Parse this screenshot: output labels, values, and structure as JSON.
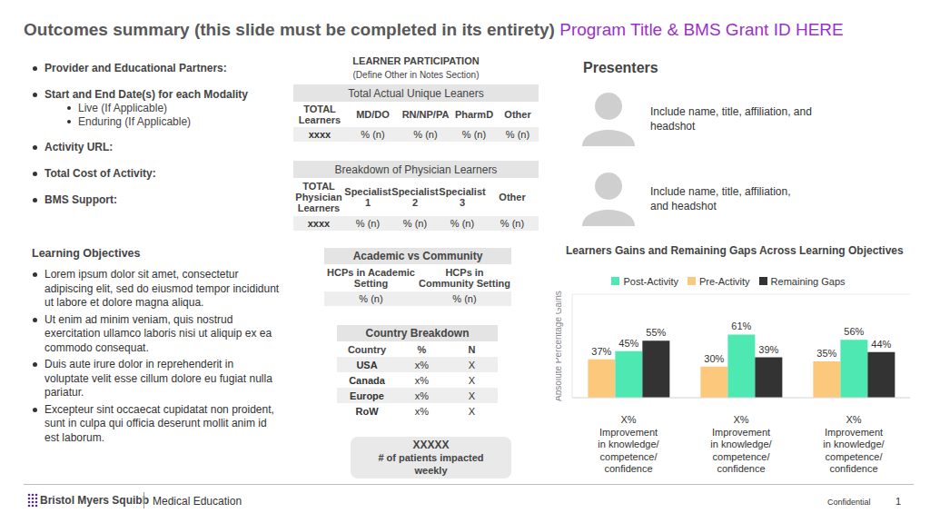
{
  "header": {
    "title": "Outcomes summary (this slide must be completed in its entirety)",
    "highlight": "Program Title & BMS Grant ID HERE"
  },
  "details": [
    {
      "text": "Provider and Educational Partners:"
    },
    {
      "text": "Start and End Date(s) for each Modality",
      "sub": [
        "Live (If Applicable)",
        "Enduring (If Applicable)"
      ]
    },
    {
      "text": "Activity URL:"
    },
    {
      "text": "Total Cost of Activity:"
    },
    {
      "text": "BMS Support:"
    }
  ],
  "learning_objectives": {
    "title": "Learning Objectives",
    "items": [
      "Lorem ipsum dolor sit amet, consectetur adipiscing elit, sed do eiusmod tempor incididunt ut labore et dolore magna aliqua.",
      "Ut enim ad minim veniam, quis nostrud exercitation ullamco laboris nisi ut aliquip ex ea commodo consequat.",
      "Duis aute irure dolor in reprehenderit in voluptate velit esse cillum dolore eu fugiat nulla pariatur.",
      "Excepteur sint occaecat cupidatat non proident, sunt in culpa qui officia deserunt mollit anim id est laborum."
    ]
  },
  "participation": {
    "title": "LEARNER PARTICIPATION",
    "subtitle": "(Define Other in Notes Section)",
    "tables": [
      {
        "title": "Total Actual Unique Leaners",
        "columns": [
          "TOTAL Learners",
          "MD/DO",
          "RN/NP/PA",
          "PharmD",
          "Other"
        ],
        "row": [
          "xxxx",
          "% (n)",
          "% (n)",
          "% (n)",
          "% (n)"
        ]
      },
      {
        "title": "Breakdown of Physician Learners",
        "columns": [
          "TOTAL Physician Learners",
          "Specialist 1",
          "Specialist 2",
          "Specialist 3",
          "Other"
        ],
        "row": [
          "xxxx",
          "% (n)",
          "% (n)",
          "% (n)",
          "% (n)"
        ]
      }
    ]
  },
  "academic": {
    "title": "Academic vs Community",
    "columns": [
      "HCPs in Academic Setting",
      "HCPs in Community Setting"
    ],
    "row": [
      "% (n)",
      "% (n)"
    ]
  },
  "country": {
    "title": "Country Breakdown",
    "columns": [
      "Country",
      "%",
      "N"
    ],
    "rows": [
      [
        "USA",
        "x%",
        "X"
      ],
      [
        "Canada",
        "x%",
        "X"
      ],
      [
        "Europe",
        "x%",
        "X"
      ],
      [
        "RoW",
        "x%",
        "X"
      ]
    ]
  },
  "patients": {
    "value": "XXXXX",
    "label": "# of patients impacted weekly"
  },
  "presenters": {
    "title": "Presenters",
    "items": [
      [
        "Include name, title, affiliation, and",
        "headshot"
      ],
      [
        "Include name, title, affiliation,",
        "and headshot"
      ]
    ]
  },
  "chart_data": {
    "type": "bar",
    "title": "Learners Gains and Remaining Gaps Across Learning Objectives",
    "y_label": "Absolute Percentage Gains",
    "categories": [
      "X%\nImprovement\nin knowledge/\ncompetence/\nconfidence",
      "X%\nImprovement\nin knowledge/\ncompetence/\nconfidence",
      "X%\nImprovement\nin knowledge/\ncompetence/\nconfidence"
    ],
    "series": [
      {
        "name": "Pre-Activity",
        "color": "#fcc97c",
        "values": [
          37,
          30,
          35
        ],
        "value_labels": [
          "37%",
          "30%",
          "35%"
        ]
      },
      {
        "name": "Post-Activity",
        "color": "#4ee8b2",
        "values": [
          45,
          61,
          56
        ],
        "value_labels": [
          "45%",
          "61%",
          "56%"
        ]
      },
      {
        "name": "Remaining Gaps",
        "color": "#333333",
        "values": [
          55,
          39,
          44
        ],
        "value_labels": [
          "55%",
          "39%",
          "44%"
        ]
      }
    ],
    "ylim": [
      0,
      100
    ],
    "yticks": [
      0,
      25,
      50,
      75,
      100
    ],
    "grid": true,
    "legend": "top",
    "data_labels": true,
    "tick_labels": "x"
  },
  "footer": {
    "brand": "Bristol Myers Squibb",
    "unit": "Medical Education",
    "label": "Confidential",
    "page": "1"
  }
}
